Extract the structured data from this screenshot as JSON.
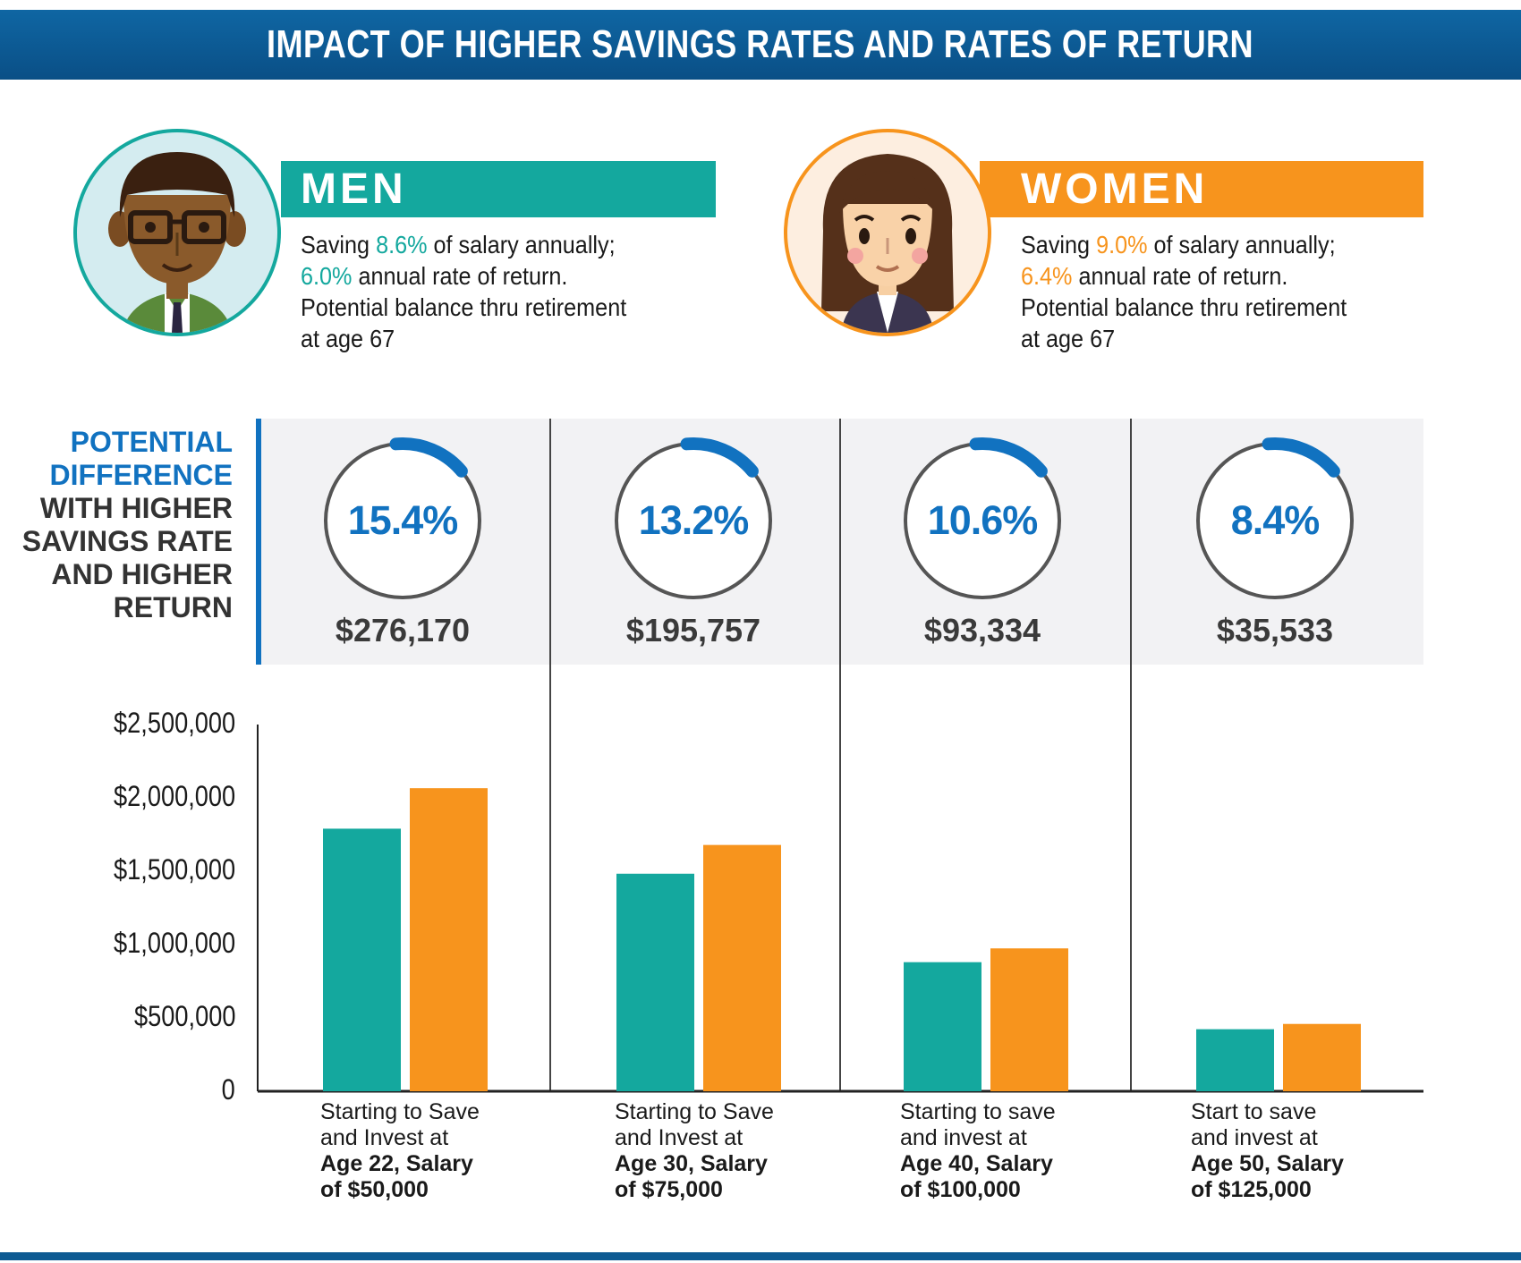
{
  "title": "IMPACT OF HIGHER SAVINGS RATES AND RATES OF RETURN",
  "colors": {
    "men": "#14a89e",
    "women": "#f7941d",
    "accent": "#1172c0",
    "header": "#0b5a94"
  },
  "men": {
    "label": "MEN",
    "icon": "man-avatar-icon",
    "line1_pre": "Saving ",
    "savings_rate": "8.6%",
    "line1_post": " of salary annually;",
    "return_rate": "6.0%",
    "line2_post": " annual rate of return.",
    "line3": "Potential balance thru retirement",
    "line4": "at age 67"
  },
  "women": {
    "label": "WOMEN",
    "icon": "woman-avatar-icon",
    "line1_pre": "Saving ",
    "savings_rate": "9.0%",
    "line1_post": " of salary annually;",
    "return_rate": "6.4%",
    "line2_post": " annual rate of return.",
    "line3": "Potential balance thru retirement",
    "line4": "at age 67"
  },
  "difference_label": {
    "line1": "POTENTIAL",
    "line2": "DIFFERENCE",
    "line3": "WITH HIGHER",
    "line4": "SAVINGS RATE",
    "line5": "AND HIGHER",
    "line6": "RETURN"
  },
  "differences": [
    {
      "percent": "15.4%",
      "percent_value": 15.4,
      "amount": "$276,170"
    },
    {
      "percent": "13.2%",
      "percent_value": 13.2,
      "amount": "$195,757"
    },
    {
      "percent": "10.6%",
      "percent_value": 10.6,
      "amount": "$93,334"
    },
    {
      "percent": "8.4%",
      "percent_value": 8.4,
      "amount": "$35,533"
    }
  ],
  "chart_data": {
    "type": "bar",
    "ylim": [
      0,
      2500000
    ],
    "yticks": [
      "0",
      "$500,000",
      "$1,000,000",
      "$1,500,000",
      "$2,000,000",
      "$2,500,000"
    ],
    "ytick_values": [
      0,
      500000,
      1000000,
      1500000,
      2000000,
      2500000
    ],
    "grid": false,
    "categories": [
      {
        "line1": "Starting to Save",
        "line2": "and Invest at",
        "bold1": "Age 22, Salary",
        "bold2": "of $50,000"
      },
      {
        "line1": "Starting to Save",
        "line2": "and Invest at",
        "bold1": "Age 30, Salary",
        "bold2": "of $75,000"
      },
      {
        "line1": "Starting to save",
        "line2": "and invest at",
        "bold1": "Age 40, Salary",
        "bold2": "of $100,000"
      },
      {
        "line1": "Start to save",
        "line2": "and invest at",
        "bold1": "Age 50, Salary",
        "bold2": "of $125,000"
      }
    ],
    "series": [
      {
        "key": "men",
        "color": "#14a89e",
        "values": [
          1790000,
          1483000,
          880000,
          423000
        ]
      },
      {
        "key": "women",
        "color": "#f7941d",
        "values": [
          2066000,
          1679000,
          974000,
          459000
        ]
      }
    ]
  }
}
